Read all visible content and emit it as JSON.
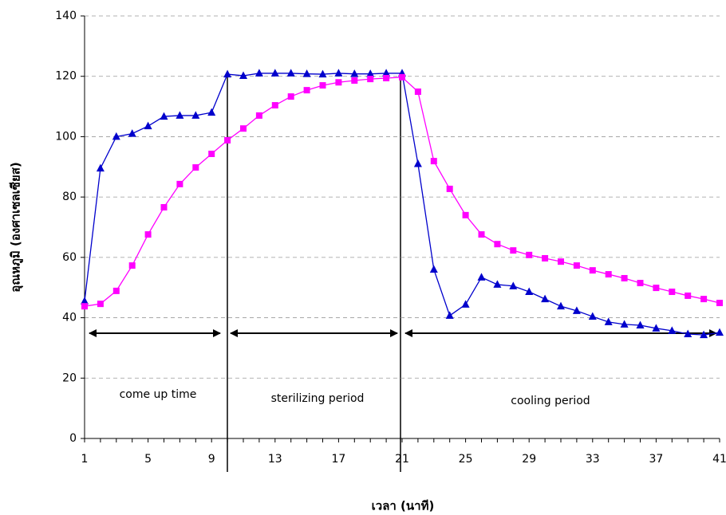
{
  "chart_data": {
    "type": "line",
    "xlabel": "เวลา (นาที)",
    "ylabel": "อุณหภูมิ (องศาเซลเซียส)",
    "annotations": [
      "come up time",
      "sterilizing period",
      "cooling period"
    ],
    "x": [
      1,
      2,
      3,
      4,
      5,
      6,
      7,
      8,
      9,
      10,
      11,
      12,
      13,
      14,
      15,
      16,
      17,
      18,
      19,
      20,
      21,
      22,
      23,
      24,
      25,
      26,
      27,
      28,
      29,
      30,
      31,
      32,
      33,
      34,
      35,
      36,
      37,
      38,
      39,
      40,
      41
    ],
    "series": [
      {
        "color": "#0000cc",
        "marker": "triangle",
        "values": [
          45.5,
          89.5,
          100,
          101,
          103.5,
          106.7,
          107,
          107,
          108,
          120.7,
          120.2,
          121,
          121,
          121,
          120.8,
          120.7,
          121,
          120.8,
          120.8,
          121,
          121,
          91,
          56,
          40.7,
          44.4,
          53.4,
          51,
          50.5,
          48.6,
          46.2,
          43.8,
          42.3,
          40.4,
          38.6,
          37.8,
          37.5,
          36.5,
          35.7,
          34.6,
          34.3,
          35.1
        ]
      },
      {
        "color": "#ff00ff",
        "marker": "square",
        "values": [
          43.8,
          44.6,
          48.9,
          57.3,
          67.6,
          76.6,
          84.3,
          89.8,
          94.3,
          98.8,
          102.7,
          107,
          110.4,
          113.3,
          115.4,
          117,
          118,
          118.6,
          119.1,
          119.4,
          119.7,
          114.9,
          91.9,
          82.7,
          74,
          67.6,
          64.4,
          62.3,
          60.8,
          59.7,
          58.6,
          57.3,
          55.7,
          54.4,
          53.1,
          51.5,
          49.9,
          48.6,
          47.3,
          46.2,
          44.9
        ]
      }
    ],
    "xlim": [
      1,
      41
    ],
    "xticks": [
      1,
      5,
      9,
      13,
      17,
      21,
      25,
      29,
      33,
      37,
      41
    ],
    "ylim": [
      0,
      140
    ],
    "yticks": [
      0,
      20,
      40,
      60,
      80,
      100,
      120,
      140
    ],
    "grid": true
  }
}
